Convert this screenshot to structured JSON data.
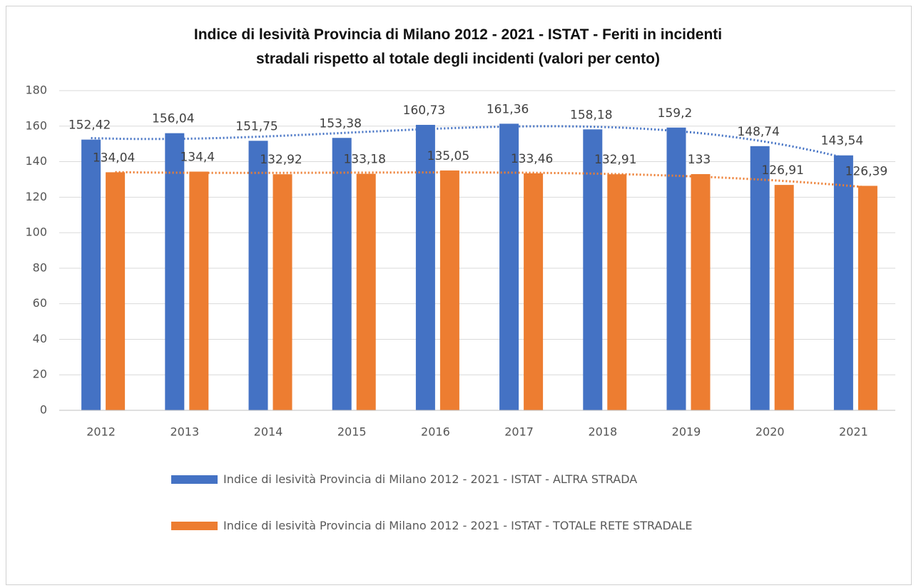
{
  "chart_data": {
    "type": "bar",
    "title": "Indice di lesività Provincia di Milano 2012 - 2021 - ISTAT - Feriti in incidenti stradali rispetto al totale degli incidenti (valori per cento)",
    "categories": [
      "2012",
      "2013",
      "2014",
      "2015",
      "2016",
      "2017",
      "2018",
      "2019",
      "2020",
      "2021"
    ],
    "series": [
      {
        "name": "Indice di lesività Provincia di Milano 2012 - 2021 - ISTAT - ALTRA STRADA",
        "color": "#4472c4",
        "values": [
          152.42,
          156.04,
          151.75,
          153.38,
          160.73,
          161.36,
          158.18,
          159.2,
          148.74,
          143.54
        ],
        "value_labels": [
          "152,42",
          "156,04",
          "151,75",
          "153,38",
          "160,73",
          "161,36",
          "158,18",
          "159,2",
          "148,74",
          "143,54"
        ],
        "trendline": "polynomial"
      },
      {
        "name": "Indice di lesività Provincia di Milano 2012 - 2021 - ISTAT - TOTALE RETE STRADALE",
        "color": "#ed7d31",
        "values": [
          134.04,
          134.4,
          132.92,
          133.18,
          135.05,
          133.46,
          132.91,
          133,
          126.91,
          126.39
        ],
        "value_labels": [
          "134,04",
          "134,4",
          "132,92",
          "133,18",
          "135,05",
          "133,46",
          "132,91",
          "133",
          "126,91",
          "126,39"
        ],
        "trendline": "polynomial"
      }
    ],
    "ylim": [
      0,
      180
    ],
    "yticks": [
      0,
      20,
      40,
      60,
      80,
      100,
      120,
      140,
      160,
      180
    ],
    "grid": true,
    "legend": "bottom"
  }
}
